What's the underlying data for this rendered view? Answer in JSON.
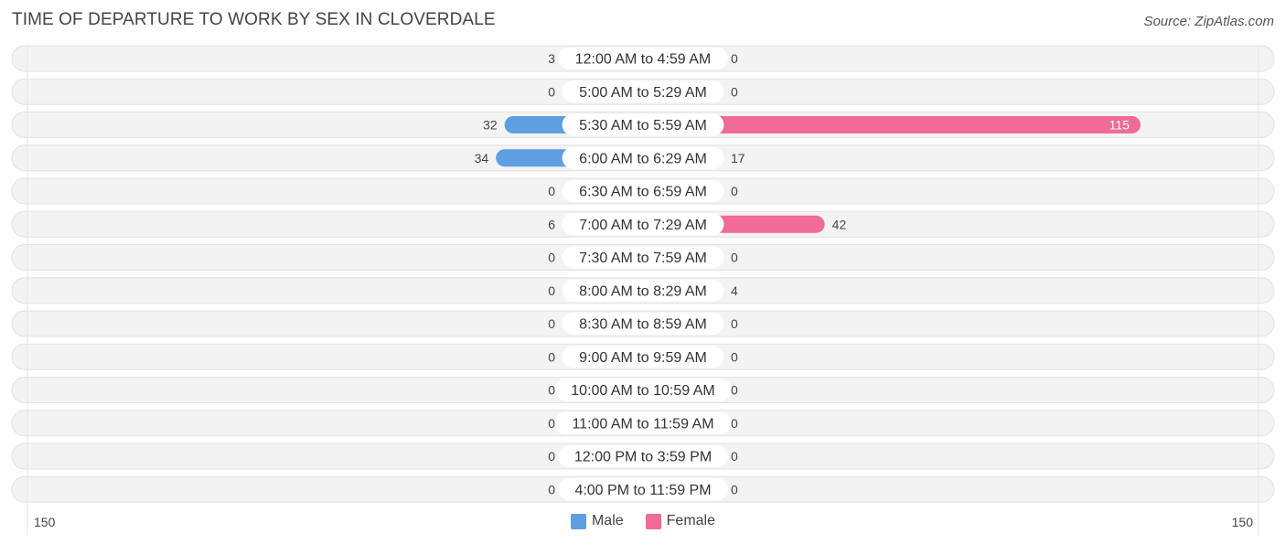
{
  "chart_data": {
    "type": "bar",
    "orientation": "horizontal-diverging",
    "title": "TIME OF DEPARTURE TO WORK BY SEX IN CLOVERDALE",
    "source": "Source: ZipAtlas.com",
    "categories": [
      "12:00 AM to 4:59 AM",
      "5:00 AM to 5:29 AM",
      "5:30 AM to 5:59 AM",
      "6:00 AM to 6:29 AM",
      "6:30 AM to 6:59 AM",
      "7:00 AM to 7:29 AM",
      "7:30 AM to 7:59 AM",
      "8:00 AM to 8:29 AM",
      "8:30 AM to 8:59 AM",
      "9:00 AM to 9:59 AM",
      "10:00 AM to 10:59 AM",
      "11:00 AM to 11:59 AM",
      "12:00 PM to 3:59 PM",
      "4:00 PM to 11:59 PM"
    ],
    "series": [
      {
        "name": "Male",
        "values": [
          3,
          0,
          32,
          34,
          0,
          6,
          0,
          0,
          0,
          0,
          0,
          0,
          0,
          0
        ],
        "color_light": "#a9c8ec",
        "color_strong": "#5f9ee0"
      },
      {
        "name": "Female",
        "values": [
          0,
          0,
          115,
          17,
          0,
          42,
          0,
          4,
          0,
          0,
          0,
          0,
          0,
          0
        ],
        "color_light": "#f6a7c1",
        "color_strong": "#f06b95"
      }
    ],
    "axis": {
      "left_label": "150",
      "right_label": "150",
      "range": [
        -150,
        150
      ]
    },
    "legend": {
      "position": "bottom-center",
      "items": [
        "Male",
        "Female"
      ]
    }
  }
}
